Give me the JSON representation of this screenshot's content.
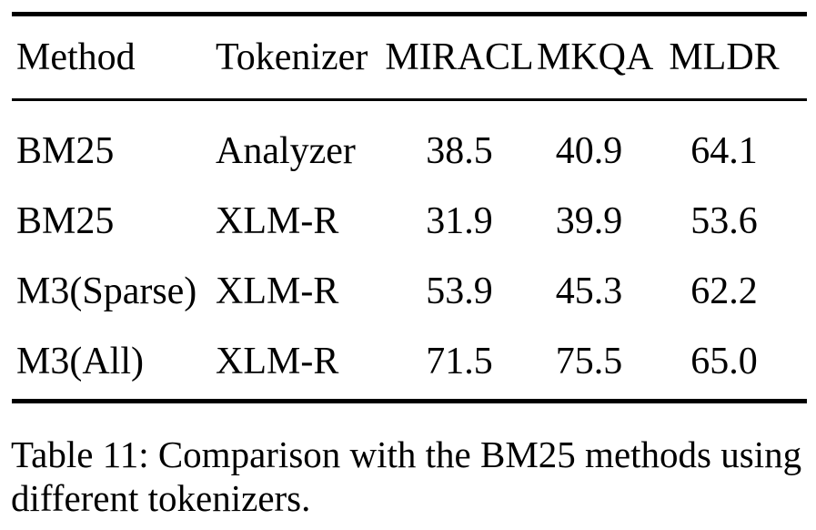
{
  "table": {
    "headers": [
      "Method",
      "Tokenizer",
      "MIRACL",
      "MKQA",
      "MLDR"
    ],
    "rows": [
      [
        "BM25",
        "Analyzer",
        "38.5",
        "40.9",
        "64.1"
      ],
      [
        "BM25",
        "XLM-R",
        "31.9",
        "39.9",
        "53.6"
      ],
      [
        "M3(Sparse)",
        "XLM-R",
        "53.9",
        "45.3",
        "62.2"
      ],
      [
        "M3(All)",
        "XLM-R",
        "71.5",
        "75.5",
        "65.0"
      ]
    ]
  },
  "caption": "Table 11: Comparison with the BM25 methods using different tokenizers.",
  "colors": {
    "text": "#000000",
    "background": "#ffffff",
    "rule": "#000000"
  }
}
